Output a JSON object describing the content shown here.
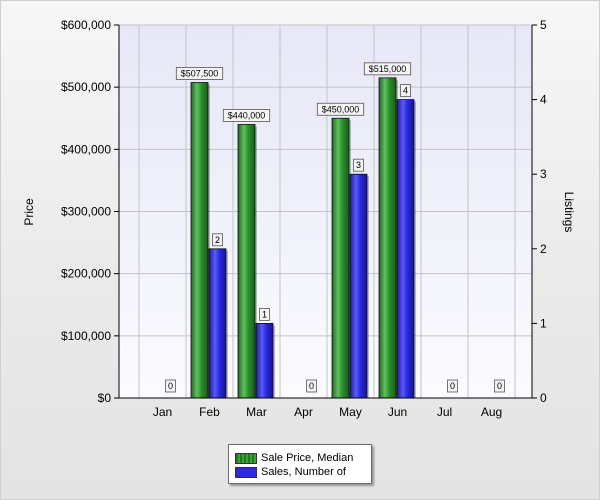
{
  "chart_data": {
    "type": "bar",
    "categories": [
      "Jan",
      "Feb",
      "Mar",
      "Apr",
      "May",
      "Jun",
      "Jul",
      "Aug"
    ],
    "series": [
      {
        "name": "Sale Price, Median",
        "axis": "left",
        "color": "#2e8b2e",
        "values": [
          0,
          507500,
          440000,
          0,
          450000,
          515000,
          0,
          0
        ],
        "labels": [
          "",
          "$507,500",
          "$440,000",
          "",
          "$450,000",
          "$515,000",
          "",
          ""
        ]
      },
      {
        "name": "Sales, Number of",
        "axis": "right",
        "color": "#2b2bd8",
        "values": [
          0,
          2,
          1,
          0,
          3,
          4,
          0,
          0
        ],
        "labels": [
          "0",
          "2",
          "1",
          "0",
          "3",
          "4",
          "0",
          "0"
        ]
      }
    ],
    "ylabel": "Price",
    "y2label": "Listings",
    "ylim": [
      0,
      600000
    ],
    "y2lim": [
      0,
      5
    ],
    "yticks": [
      "$0",
      "$100,000",
      "$200,000",
      "$300,000",
      "$400,000",
      "$500,000",
      "$600,000"
    ],
    "y2ticks": [
      "0",
      "1",
      "2",
      "3",
      "4",
      "5"
    ],
    "grid": true,
    "legend": "bottom-center"
  }
}
